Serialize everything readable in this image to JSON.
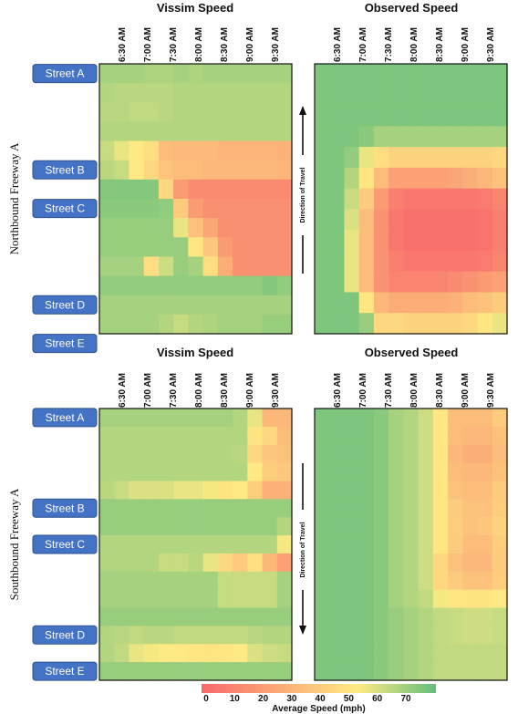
{
  "chart_data": {
    "type": "heatmap",
    "time_labels": [
      "6:30 AM",
      "7:00 AM",
      "7:30 AM",
      "8:00 AM",
      "8:30 AM",
      "9:00 AM",
      "9:30 AM"
    ],
    "colorbar": {
      "label": "Average Speed (mph)",
      "ticks": [
        "0",
        "10",
        "20",
        "30",
        "40",
        "50",
        "60",
        "70"
      ],
      "min": 0,
      "max": 70,
      "colors": [
        "#f8696b",
        "#fbaa77",
        "#ffeb84",
        "#63be7b"
      ]
    },
    "sections": [
      {
        "ylabel": "Northbound Freeway A",
        "direction_label": "Direction of Travel",
        "direction": "up",
        "streets": [
          {
            "label": "Street A",
            "row": 0
          },
          {
            "label": "Street B",
            "row": 5
          },
          {
            "label": "Street C",
            "row": 7
          },
          {
            "label": "Street D",
            "row": 12
          },
          {
            "label": "Street E",
            "row": 14
          }
        ],
        "panels": [
          {
            "title": "Vissim Speed",
            "values": [
              [
                60,
                60,
                60,
                59,
                59,
                60,
                59,
                60,
                60,
                60,
                60,
                60,
                60
              ],
              [
                58,
                57,
                57,
                57,
                57,
                58,
                58,
                58,
                58,
                58,
                58,
                58,
                58
              ],
              [
                57,
                57,
                56,
                56,
                57,
                58,
                58,
                58,
                58,
                58,
                58,
                58,
                58
              ],
              [
                58,
                58,
                58,
                58,
                58,
                58,
                58,
                58,
                58,
                58,
                58,
                58,
                58
              ],
              [
                55,
                50,
                46,
                42,
                30,
                29,
                29,
                29,
                27,
                27,
                27,
                27,
                26
              ],
              [
                57,
                55,
                46,
                40,
                33,
                30,
                30,
                28,
                28,
                28,
                28,
                28,
                27
              ],
              [
                65,
                65,
                65,
                65,
                40,
                18,
                12,
                12,
                12,
                12,
                12,
                12,
                12
              ],
              [
                64,
                64,
                64,
                64,
                63,
                35,
                18,
                14,
                14,
                14,
                14,
                14,
                14
              ],
              [
                62,
                62,
                62,
                62,
                62,
                50,
                32,
                22,
                14,
                14,
                14,
                14,
                14
              ],
              [
                62,
                62,
                62,
                62,
                62,
                62,
                45,
                34,
                18,
                14,
                14,
                14,
                14
              ],
              [
                60,
                60,
                60,
                42,
                54,
                62,
                60,
                42,
                24,
                14,
                14,
                14,
                14
              ],
              [
                63,
                63,
                63,
                63,
                63,
                63,
                63,
                63,
                63,
                63,
                63,
                65,
                63
              ],
              [
                60,
                60,
                60,
                60,
                60,
                60,
                60,
                60,
                60,
                60,
                60,
                60,
                60
              ],
              [
                60,
                60,
                60,
                60,
                58,
                55,
                58,
                59,
                60,
                60,
                60,
                62,
                62
              ]
            ]
          },
          {
            "title": "Observed Speed",
            "values": [
              [
                66,
                66,
                66,
                66,
                66,
                66,
                66,
                66,
                66,
                66,
                66,
                66,
                66
              ],
              [
                66,
                66,
                66,
                66,
                66,
                66,
                66,
                66,
                66,
                66,
                66,
                66,
                66
              ],
              [
                66,
                66,
                66,
                66,
                66,
                66,
                66,
                66,
                66,
                66,
                66,
                66,
                66
              ],
              [
                66,
                66,
                66,
                64,
                60,
                60,
                60,
                60,
                60,
                60,
                60,
                60,
                60
              ],
              [
                66,
                66,
                63,
                50,
                42,
                38,
                38,
                38,
                38,
                38,
                38,
                38,
                40
              ],
              [
                66,
                66,
                58,
                45,
                30,
                20,
                20,
                20,
                20,
                22,
                25,
                28,
                32
              ],
              [
                66,
                66,
                55,
                35,
                18,
                8,
                5,
                5,
                5,
                5,
                5,
                6,
                10
              ],
              [
                66,
                66,
                52,
                30,
                15,
                5,
                3,
                3,
                3,
                3,
                3,
                4,
                8
              ],
              [
                66,
                66,
                50,
                30,
                15,
                5,
                3,
                3,
                3,
                3,
                3,
                4,
                8
              ],
              [
                66,
                66,
                50,
                30,
                15,
                8,
                5,
                5,
                5,
                5,
                5,
                6,
                10
              ],
              [
                66,
                66,
                50,
                30,
                15,
                10,
                10,
                10,
                10,
                12,
                15,
                18,
                20
              ],
              [
                66,
                66,
                66,
                45,
                28,
                24,
                24,
                24,
                24,
                26,
                30,
                32,
                35
              ],
              [
                66,
                66,
                66,
                62,
                40,
                40,
                38,
                38,
                38,
                38,
                40,
                45,
                50
              ]
            ]
          }
        ]
      },
      {
        "ylabel": "Southbound Freeway A",
        "direction_label": "Direction of Travel",
        "direction": "down",
        "streets": [
          {
            "label": "Street A",
            "row": 0
          },
          {
            "label": "Street B",
            "row": 5
          },
          {
            "label": "Street C",
            "row": 7
          },
          {
            "label": "Street D",
            "row": 12
          },
          {
            "label": "Street E",
            "row": 14
          }
        ],
        "panels": [
          {
            "title": "Vissim Speed",
            "values": [
              [
                60,
                60,
                60,
                60,
                60,
                60,
                60,
                60,
                60,
                58,
                50,
                28,
                28
              ],
              [
                58,
                58,
                58,
                58,
                58,
                58,
                58,
                58,
                58,
                58,
                44,
                40,
                30
              ],
              [
                58,
                58,
                58,
                58,
                58,
                58,
                58,
                58,
                58,
                57,
                40,
                34,
                32
              ],
              [
                58,
                58,
                58,
                58,
                58,
                58,
                58,
                58,
                58,
                58,
                46,
                36,
                34
              ],
              [
                57,
                55,
                52,
                52,
                52,
                50,
                50,
                48,
                44,
                47,
                36,
                26,
                26
              ],
              [
                62,
                62,
                62,
                62,
                62,
                62,
                62,
                62,
                62,
                62,
                62,
                62,
                62
              ],
              [
                62,
                62,
                62,
                62,
                62,
                62,
                62,
                62,
                62,
                62,
                62,
                62,
                58
              ],
              [
                58,
                58,
                58,
                58,
                58,
                58,
                58,
                58,
                58,
                58,
                58,
                58,
                48
              ],
              [
                58,
                58,
                58,
                58,
                55,
                55,
                57,
                50,
                40,
                35,
                42,
                28,
                20
              ],
              [
                60,
                60,
                60,
                60,
                60,
                60,
                60,
                60,
                55,
                55,
                55,
                55,
                60
              ],
              [
                60,
                60,
                60,
                60,
                60,
                60,
                60,
                60,
                55,
                55,
                55,
                55,
                60
              ],
              [
                62,
                62,
                62,
                62,
                62,
                62,
                62,
                62,
                62,
                62,
                62,
                62,
                62
              ],
              [
                58,
                57,
                56,
                57,
                57,
                56,
                56,
                56,
                56,
                56,
                57,
                58,
                58
              ],
              [
                58,
                56,
                50,
                48,
                47,
                46,
                45,
                44,
                45,
                47,
                52,
                54,
                55
              ],
              [
                62,
                62,
                62,
                62,
                62,
                62,
                62,
                62,
                62,
                62,
                62,
                62,
                62
              ]
            ]
          },
          {
            "title": "Observed Speed",
            "values": [
              [
                66,
                66,
                66,
                66,
                64,
                60,
                58,
                54,
                45,
                30,
                30,
                30,
                35
              ],
              [
                66,
                66,
                66,
                66,
                64,
                60,
                58,
                54,
                45,
                30,
                28,
                28,
                32
              ],
              [
                66,
                66,
                66,
                66,
                64,
                60,
                58,
                54,
                45,
                28,
                25,
                25,
                30
              ],
              [
                66,
                66,
                66,
                66,
                64,
                60,
                58,
                54,
                45,
                30,
                28,
                28,
                32
              ],
              [
                66,
                66,
                66,
                66,
                64,
                60,
                58,
                54,
                45,
                32,
                30,
                30,
                35
              ],
              [
                66,
                66,
                66,
                66,
                64,
                60,
                58,
                54,
                45,
                35,
                32,
                32,
                36
              ],
              [
                66,
                66,
                66,
                66,
                64,
                60,
                58,
                54,
                45,
                36,
                32,
                34,
                38
              ],
              [
                66,
                66,
                66,
                66,
                64,
                60,
                58,
                54,
                45,
                35,
                30,
                30,
                36
              ],
              [
                66,
                66,
                66,
                66,
                64,
                60,
                58,
                54,
                40,
                32,
                28,
                28,
                35
              ],
              [
                66,
                66,
                66,
                66,
                64,
                60,
                58,
                54,
                40,
                35,
                32,
                32,
                36
              ],
              [
                66,
                66,
                66,
                66,
                64,
                60,
                58,
                56,
                48,
                45,
                44,
                44,
                46
              ],
              [
                66,
                66,
                66,
                66,
                64,
                62,
                60,
                58,
                56,
                55,
                54,
                54,
                55
              ],
              [
                66,
                66,
                66,
                66,
                64,
                62,
                60,
                58,
                56,
                55,
                54,
                54,
                55
              ],
              [
                66,
                66,
                66,
                66,
                64,
                62,
                60,
                58,
                56,
                56,
                56,
                56,
                56
              ],
              [
                66,
                66,
                66,
                66,
                64,
                62,
                60,
                58,
                56,
                56,
                56,
                56,
                56
              ]
            ]
          }
        ]
      }
    ]
  }
}
